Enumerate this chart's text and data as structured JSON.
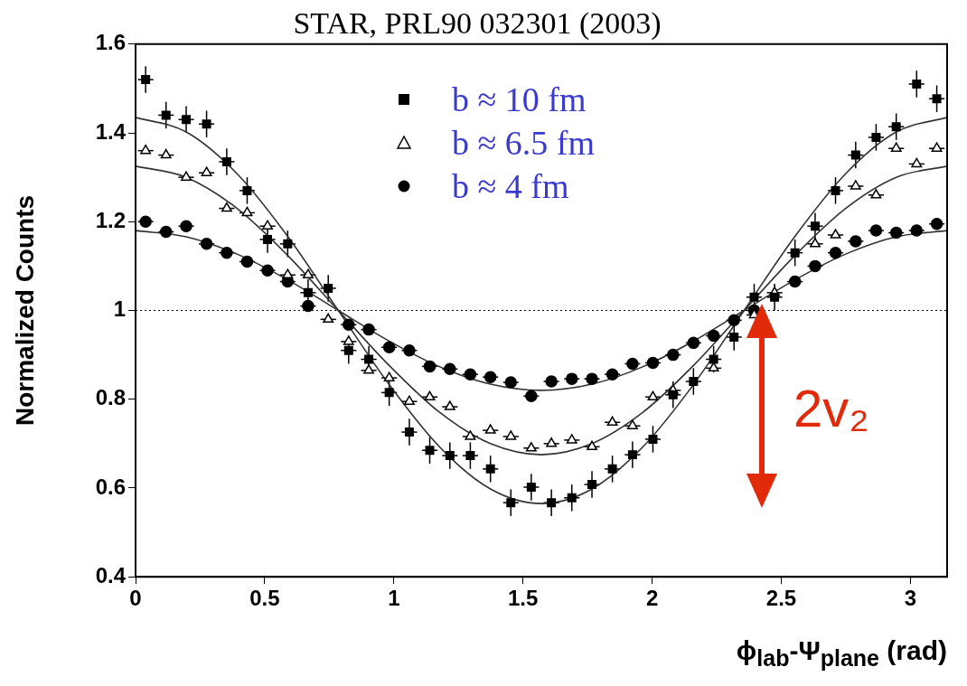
{
  "chart_data": {
    "type": "scatter",
    "title": "STAR, PRL90 032301 (2003)",
    "xlabel": "ϕ$_{lab}$-Ψ$_{plane}$ (rad)",
    "ylabel": "Normalized Counts",
    "annotations": [
      "2v₂"
    ],
    "x": [
      0.039,
      0.118,
      0.196,
      0.275,
      0.353,
      0.432,
      0.511,
      0.589,
      0.668,
      0.746,
      0.825,
      0.903,
      0.982,
      1.06,
      1.139,
      1.217,
      1.296,
      1.374,
      1.453,
      1.532,
      1.61,
      1.689,
      1.767,
      1.846,
      1.924,
      2.003,
      2.081,
      2.16,
      2.238,
      2.317,
      2.395,
      2.474,
      2.553,
      2.631,
      2.71,
      2.788,
      2.867,
      2.945,
      3.024,
      3.102
    ],
    "series": [
      {
        "name": "b ≈ 10 fm",
        "color": "#000000",
        "marker": "square",
        "values": [
          1.52,
          1.44,
          1.43,
          1.42,
          1.335,
          1.27,
          1.16,
          1.15,
          1.04,
          1.05,
          0.91,
          0.89,
          0.815,
          0.726,
          0.685,
          0.673,
          0.673,
          0.643,
          0.567,
          0.602,
          0.567,
          0.578,
          0.608,
          0.643,
          0.675,
          0.71,
          0.81,
          0.84,
          0.89,
          0.94,
          1.03,
          1.03,
          1.13,
          1.19,
          1.27,
          1.35,
          1.39,
          1.414,
          1.51,
          1.477
        ],
        "errors": [
          0.03,
          0.03,
          0.03,
          0.03,
          0.03,
          0.03,
          0.03,
          0.03,
          0.03,
          0.03,
          0.03,
          0.03,
          0.03,
          0.03,
          0.03,
          0.03,
          0.03,
          0.03,
          0.03,
          0.03,
          0.03,
          0.03,
          0.03,
          0.03,
          0.03,
          0.03,
          0.03,
          0.03,
          0.03,
          0.03,
          0.03,
          0.03,
          0.03,
          0.03,
          0.03,
          0.03,
          0.03,
          0.03,
          0.03,
          0.03
        ],
        "xerrors": [
          0.03,
          0.03,
          0.03,
          0.03,
          0.03,
          0.03,
          0.03,
          0.03,
          0.03,
          0.03,
          0.03,
          0.03,
          0.03,
          0.03,
          0.03,
          0.03,
          0.03,
          0.03,
          0.03,
          0.03,
          0.03,
          0.03,
          0.03,
          0.03,
          0.03,
          0.03,
          0.03,
          0.03,
          0.03,
          0.03,
          0.03,
          0.03,
          0.03,
          0.03,
          0.03,
          0.03,
          0.03,
          0.03,
          0.03,
          0.03
        ]
      },
      {
        "name": "b ≈ 6.5 fm",
        "color": "#000000",
        "marker": "triangle",
        "values": [
          1.36,
          1.35,
          1.3,
          1.31,
          1.23,
          1.22,
          1.19,
          1.08,
          1.08,
          0.98,
          0.93,
          0.865,
          0.848,
          0.795,
          0.805,
          0.783,
          0.716,
          0.73,
          0.716,
          0.69,
          0.7,
          0.708,
          0.693,
          0.748,
          0.74,
          0.805,
          0.82,
          null,
          0.87,
          null,
          0.99,
          1.04,
          null,
          1.15,
          1.17,
          1.28,
          1.26,
          1.365,
          1.33,
          1.365
        ],
        "xerrors": [
          0.03,
          0.03,
          0.03,
          0.03,
          0.03,
          0.03,
          0.03,
          0.03,
          0.03,
          0.03,
          0.03,
          0.03,
          0.03,
          0.03,
          0.03,
          0.03,
          0.03,
          0.03,
          0.03,
          0.03,
          0.03,
          0.03,
          0.03,
          0.03,
          0.03,
          0.03,
          0.03,
          null,
          0.03,
          null,
          0.03,
          0.03,
          null,
          0.03,
          0.03,
          0.03,
          0.03,
          0.03,
          0.03,
          0.03
        ]
      },
      {
        "name": "b ≈ 4 fm",
        "color": "#000000",
        "marker": "circle",
        "values": [
          1.2,
          1.177,
          1.19,
          1.15,
          1.13,
          1.11,
          1.09,
          1.065,
          1.01,
          null,
          0.968,
          0.957,
          0.917,
          0.91,
          0.874,
          0.868,
          0.856,
          0.85,
          0.838,
          0.807,
          0.84,
          0.846,
          0.846,
          0.856,
          0.88,
          0.882,
          0.9,
          0.927,
          0.943,
          0.978,
          1.0,
          null,
          1.065,
          1.1,
          1.13,
          1.156,
          1.18,
          1.175,
          1.18,
          1.195
        ],
        "xerrors": [
          0.03,
          0.03,
          0.03,
          0.03,
          0.03,
          0.03,
          0.03,
          0.03,
          0.03,
          null,
          0.03,
          0.03,
          0.03,
          0.03,
          0.03,
          0.03,
          0.03,
          0.03,
          0.03,
          0.03,
          0.03,
          0.03,
          0.03,
          0.03,
          0.03,
          0.03,
          0.03,
          0.03,
          0.03,
          0.03,
          0.03,
          null,
          0.03,
          0.03,
          0.03,
          0.03,
          0.03,
          0.03,
          0.03,
          0.03
        ]
      },
      {
        "type": "line",
        "color": "#333333",
        "x": [
          0,
          0.196,
          0.393,
          0.589,
          0.785,
          0.982,
          1.178,
          1.374,
          1.571,
          1.767,
          1.963,
          2.16,
          2.356,
          2.553,
          2.749,
          2.945,
          3.142
        ],
        "values": [
          1.435,
          1.402,
          1.308,
          1.167,
          1.0,
          0.833,
          0.692,
          0.598,
          0.565,
          0.598,
          0.692,
          0.833,
          1.0,
          1.167,
          1.308,
          1.402,
          1.435
        ]
      },
      {
        "type": "line",
        "color": "#333333",
        "x": [
          0,
          0.196,
          0.393,
          0.589,
          0.785,
          0.982,
          1.178,
          1.374,
          1.571,
          1.767,
          1.963,
          2.16,
          2.356,
          2.553,
          2.749,
          2.945,
          3.142
        ],
        "values": [
          1.325,
          1.3,
          1.23,
          1.124,
          1.0,
          0.876,
          0.77,
          0.7,
          0.675,
          0.7,
          0.77,
          0.876,
          1.0,
          1.124,
          1.23,
          1.3,
          1.325
        ]
      },
      {
        "type": "line",
        "color": "#333333",
        "x": [
          0,
          0.196,
          0.393,
          0.589,
          0.785,
          0.982,
          1.178,
          1.374,
          1.571,
          1.767,
          1.963,
          2.16,
          2.356,
          2.553,
          2.749,
          2.945,
          3.142
        ],
        "values": [
          1.18,
          1.166,
          1.127,
          1.069,
          1.0,
          0.931,
          0.873,
          0.834,
          0.82,
          0.834,
          0.873,
          0.931,
          1.0,
          1.069,
          1.127,
          1.166,
          1.18
        ]
      }
    ],
    "xlim": [
      0,
      3.142
    ],
    "xticks": [
      0,
      0.5,
      1,
      1.5,
      2,
      2.5,
      3
    ],
    "ylim": [
      0.4,
      1.6
    ],
    "yticks": [
      0.4,
      0.6,
      0.8,
      1,
      1.2,
      1.4,
      1.6
    ],
    "ref_lines": [
      {
        "axis": "y",
        "value": 1,
        "color": "#000000",
        "line_style": "dotted"
      }
    ],
    "grid": false,
    "legend": "top"
  }
}
